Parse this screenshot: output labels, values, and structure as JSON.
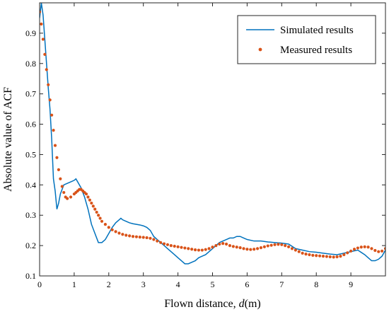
{
  "chart_data": {
    "type": "line",
    "xlabel": "Flown distance, ",
    "xlabel_var": "d",
    "xlabel_unit": "(m)",
    "ylabel": "Absolute value of ACF",
    "xlim": [
      0,
      10
    ],
    "ylim": [
      0.1,
      1.0
    ],
    "xticks": [
      0,
      1,
      2,
      3,
      4,
      5,
      6,
      7,
      8,
      9
    ],
    "yticks": [
      0.1,
      0.2,
      0.3,
      0.4,
      0.5,
      0.6,
      0.7,
      0.8,
      0.9
    ],
    "grid": false,
    "legend_position": "top-right",
    "series": [
      {
        "name": "Simulated results",
        "style": "line",
        "color": "#0072BD",
        "x": [
          0,
          0.05,
          0.1,
          0.15,
          0.2,
          0.25,
          0.3,
          0.35,
          0.4,
          0.45,
          0.5,
          0.55,
          0.6,
          0.7,
          0.8,
          0.9,
          1.0,
          1.05,
          1.1,
          1.2,
          1.3,
          1.4,
          1.5,
          1.6,
          1.7,
          1.8,
          1.9,
          2.0,
          2.1,
          2.2,
          2.3,
          2.35,
          2.4,
          2.5,
          2.6,
          2.7,
          2.8,
          2.9,
          3.0,
          3.1,
          3.2,
          3.3,
          3.4,
          3.5,
          3.6,
          3.7,
          3.8,
          3.9,
          4.0,
          4.1,
          4.2,
          4.3,
          4.4,
          4.5,
          4.6,
          4.7,
          4.8,
          4.9,
          5.0,
          5.1,
          5.2,
          5.3,
          5.4,
          5.5,
          5.6,
          5.7,
          5.8,
          5.9,
          6.0,
          6.2,
          6.4,
          6.6,
          6.8,
          7.0,
          7.2,
          7.4,
          7.6,
          7.8,
          8.0,
          8.2,
          8.4,
          8.6,
          8.8,
          9.0,
          9.2,
          9.4,
          9.5,
          9.6,
          9.7,
          9.8,
          9.9,
          10.0
        ],
        "y": [
          0.95,
          1.0,
          0.96,
          0.88,
          0.8,
          0.72,
          0.65,
          0.55,
          0.42,
          0.38,
          0.32,
          0.34,
          0.37,
          0.4,
          0.405,
          0.41,
          0.415,
          0.42,
          0.41,
          0.39,
          0.36,
          0.32,
          0.27,
          0.24,
          0.21,
          0.21,
          0.22,
          0.24,
          0.26,
          0.275,
          0.285,
          0.29,
          0.285,
          0.28,
          0.275,
          0.272,
          0.27,
          0.268,
          0.265,
          0.26,
          0.25,
          0.23,
          0.22,
          0.21,
          0.2,
          0.19,
          0.18,
          0.17,
          0.16,
          0.15,
          0.14,
          0.14,
          0.145,
          0.15,
          0.16,
          0.165,
          0.17,
          0.18,
          0.19,
          0.2,
          0.21,
          0.215,
          0.22,
          0.225,
          0.225,
          0.23,
          0.23,
          0.225,
          0.22,
          0.215,
          0.215,
          0.212,
          0.21,
          0.208,
          0.205,
          0.19,
          0.185,
          0.18,
          0.178,
          0.175,
          0.172,
          0.17,
          0.175,
          0.18,
          0.185,
          0.17,
          0.16,
          0.15,
          0.15,
          0.155,
          0.165,
          0.185
        ]
      },
      {
        "name": "Measured results",
        "style": "dots",
        "color": "#D95319",
        "x": [
          0.0,
          0.05,
          0.1,
          0.15,
          0.2,
          0.25,
          0.3,
          0.35,
          0.4,
          0.45,
          0.5,
          0.55,
          0.6,
          0.65,
          0.7,
          0.75,
          0.8,
          0.9,
          1.0,
          1.05,
          1.1,
          1.15,
          1.2,
          1.25,
          1.3,
          1.35,
          1.4,
          1.45,
          1.5,
          1.55,
          1.6,
          1.65,
          1.7,
          1.75,
          1.8,
          1.9,
          2.0,
          2.1,
          2.2,
          2.3,
          2.4,
          2.5,
          2.6,
          2.7,
          2.8,
          2.9,
          3.0,
          3.1,
          3.2,
          3.3,
          3.4,
          3.5,
          3.6,
          3.7,
          3.8,
          3.9,
          4.0,
          4.1,
          4.2,
          4.3,
          4.4,
          4.5,
          4.6,
          4.7,
          4.8,
          4.9,
          5.0,
          5.1,
          5.2,
          5.3,
          5.4,
          5.5,
          5.6,
          5.7,
          5.8,
          5.9,
          6.0,
          6.1,
          6.2,
          6.3,
          6.4,
          6.5,
          6.6,
          6.7,
          6.8,
          6.9,
          7.0,
          7.1,
          7.2,
          7.3,
          7.4,
          7.5,
          7.6,
          7.7,
          7.8,
          7.9,
          8.0,
          8.1,
          8.2,
          8.3,
          8.4,
          8.5,
          8.6,
          8.7,
          8.8,
          8.9,
          9.0,
          9.1,
          9.2,
          9.3,
          9.4,
          9.5,
          9.6,
          9.7,
          9.8,
          9.9,
          10.0
        ],
        "y": [
          0.97,
          0.93,
          0.88,
          0.83,
          0.78,
          0.73,
          0.68,
          0.63,
          0.58,
          0.53,
          0.49,
          0.45,
          0.42,
          0.395,
          0.375,
          0.36,
          0.355,
          0.36,
          0.37,
          0.375,
          0.38,
          0.385,
          0.385,
          0.38,
          0.375,
          0.37,
          0.36,
          0.35,
          0.34,
          0.33,
          0.32,
          0.31,
          0.3,
          0.29,
          0.28,
          0.27,
          0.26,
          0.252,
          0.246,
          0.241,
          0.237,
          0.234,
          0.232,
          0.23,
          0.229,
          0.228,
          0.227,
          0.226,
          0.224,
          0.22,
          0.215,
          0.21,
          0.206,
          0.203,
          0.2,
          0.198,
          0.196,
          0.194,
          0.192,
          0.19,
          0.188,
          0.186,
          0.185,
          0.185,
          0.187,
          0.19,
          0.195,
          0.2,
          0.205,
          0.207,
          0.205,
          0.2,
          0.197,
          0.195,
          0.193,
          0.19,
          0.188,
          0.187,
          0.188,
          0.19,
          0.193,
          0.196,
          0.199,
          0.201,
          0.203,
          0.204,
          0.203,
          0.2,
          0.196,
          0.19,
          0.185,
          0.18,
          0.175,
          0.172,
          0.17,
          0.168,
          0.167,
          0.166,
          0.165,
          0.164,
          0.163,
          0.162,
          0.163,
          0.165,
          0.17,
          0.176,
          0.182,
          0.188,
          0.192,
          0.195,
          0.196,
          0.195,
          0.19,
          0.184,
          0.18,
          0.182,
          0.19
        ]
      }
    ]
  }
}
